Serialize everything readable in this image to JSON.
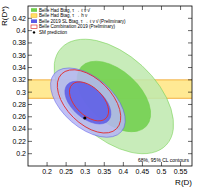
{
  "chart_data": {
    "type": "contour",
    "x_label": "R(D)",
    "y_label": "R(D*)",
    "annotation": "68%, 95% CL contours",
    "contours": [
      68,
      95
    ],
    "xlim": [
      0.15,
      0.58
    ],
    "ylim": [
      0.18,
      0.44
    ],
    "xticks": [
      0.2,
      0.25,
      0.3,
      0.35,
      0.4,
      0.45,
      0.5,
      0.55
    ],
    "yticks": [
      0.2,
      0.22,
      0.24,
      0.26,
      0.28,
      0.3,
      0.32,
      0.34,
      0.36,
      0.38,
      0.4,
      0.42
    ],
    "legend": "top-left",
    "series": [
      {
        "name": "Belle Had Btag, τ → ℓ ν ν̄",
        "type": "ellipse",
        "color": "#6fcf4a",
        "x": [
          0.375
        ],
        "values": [
          0.293
        ],
        "x_err": [
          0.064
        ],
        "y_err": [
          0.038
        ],
        "correlation": [
          -0.49
        ]
      },
      {
        "name": "Belle Had Btag, τ → h ν",
        "type": "band",
        "color": "#ffe066",
        "values": [
          0.305
        ],
        "y_err": [
          0.015
        ]
      },
      {
        "name": "Belle 2019 SL Btag, τ → ℓ ν ν̄ (Preliminary)",
        "type": "ellipse",
        "color": "#5a5ae6",
        "x": [
          0.307
        ],
        "values": [
          0.283
        ],
        "x_err": [
          0.04
        ],
        "y_err": [
          0.023
        ],
        "correlation": [
          -0.51
        ]
      },
      {
        "name": "Belle Combination 2019 (Preliminary)",
        "type": "ellipse",
        "color": "#e03030",
        "x": [
          0.31
        ],
        "values": [
          0.285
        ],
        "x_err": [
          0.034
        ],
        "y_err": [
          0.021
        ],
        "correlation": [
          -0.5
        ]
      },
      {
        "name": "SM prediction",
        "type": "scatter",
        "color": "#000000",
        "marker": "dot",
        "x": [
          0.299
        ],
        "values": [
          0.258
        ]
      }
    ]
  }
}
